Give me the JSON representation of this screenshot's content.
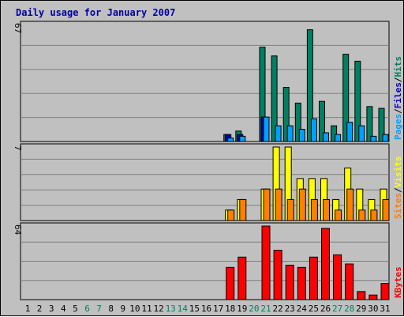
{
  "chart_data": {
    "type": "bar",
    "title": "Daily usage for January 2007",
    "x": [
      "1",
      "2",
      "3",
      "4",
      "5",
      "6",
      "7",
      "8",
      "9",
      "10",
      "11",
      "12",
      "13",
      "14",
      "15",
      "16",
      "17",
      "18",
      "19",
      "20",
      "21",
      "22",
      "23",
      "24",
      "25",
      "26",
      "27",
      "28",
      "29",
      "30",
      "31"
    ],
    "weekend_days": [
      "6",
      "7",
      "13",
      "14",
      "20",
      "21",
      "27",
      "28"
    ],
    "colors": {
      "weekday_label": "#000000",
      "weekend_label": "#00805f"
    },
    "panels": [
      {
        "id": "hits-files-pages",
        "scale_label": "67",
        "ymax": 67,
        "legend": [
          {
            "text": "Pages",
            "color": "#00a0ff"
          },
          {
            "text": "/",
            "color": "#000000"
          },
          {
            "text": "Files",
            "color": "#0000c0"
          },
          {
            "text": "/",
            "color": "#000000"
          },
          {
            "text": "Hits",
            "color": "#008060"
          }
        ],
        "series": [
          {
            "name": "Hits",
            "color": "#008060",
            "values": [
              0,
              0,
              0,
              0,
              0,
              0,
              0,
              0,
              0,
              0,
              0,
              0,
              0,
              0,
              0,
              0,
              0,
              4,
              6,
              0,
              54,
              49,
              31,
              22,
              64,
              23,
              9,
              50,
              46,
              20,
              19
            ]
          },
          {
            "name": "Files",
            "color": "#0000c0",
            "values": [
              0,
              0,
              0,
              0,
              0,
              0,
              0,
              0,
              0,
              0,
              0,
              0,
              0,
              0,
              0,
              0,
              0,
              4,
              4,
              0,
              14,
              0,
              0,
              0,
              0,
              0,
              0,
              0,
              0,
              0,
              0
            ]
          },
          {
            "name": "Pages",
            "color": "#00a0ff",
            "values": [
              0,
              0,
              0,
              0,
              0,
              0,
              0,
              0,
              0,
              0,
              0,
              0,
              0,
              0,
              0,
              0,
              0,
              2,
              3,
              0,
              14,
              9,
              9,
              7,
              13,
              5,
              4,
              11,
              9,
              3,
              4
            ]
          }
        ]
      },
      {
        "id": "visits-sites",
        "scale_label": "7",
        "ymax": 7,
        "legend": [
          {
            "text": "Sites",
            "color": "#ff8000"
          },
          {
            "text": "/",
            "color": "#000000"
          },
          {
            "text": "Visits",
            "color": "#ffff00"
          }
        ],
        "series": [
          {
            "name": "Visits",
            "color": "#ffff00",
            "values": [
              0,
              0,
              0,
              0,
              0,
              0,
              0,
              0,
              0,
              0,
              0,
              0,
              0,
              0,
              0,
              0,
              0,
              1,
              2,
              0,
              3,
              7,
              7,
              4,
              4,
              4,
              2,
              5,
              3,
              2,
              3
            ]
          },
          {
            "name": "Sites",
            "color": "#ff8000",
            "values": [
              0,
              0,
              0,
              0,
              0,
              0,
              0,
              0,
              0,
              0,
              0,
              0,
              0,
              0,
              0,
              0,
              0,
              1,
              2,
              0,
              3,
              3,
              2,
              3,
              2,
              2,
              1,
              3,
              1,
              1,
              2
            ]
          }
        ]
      },
      {
        "id": "kbytes",
        "scale_label": "64",
        "ymax": 64,
        "legend": [
          {
            "text": "KBytes",
            "color": "#ff0000"
          }
        ],
        "series": [
          {
            "name": "KBytes",
            "color": "#ff0000",
            "values": [
              0,
              0,
              0,
              0,
              0,
              0,
              0,
              0,
              0,
              0,
              0,
              0,
              0,
              0,
              0,
              0,
              0,
              28,
              37,
              0,
              64,
              43,
              30,
              28,
              37,
              62,
              39,
              31,
              7,
              4,
              14
            ]
          }
        ]
      }
    ]
  }
}
